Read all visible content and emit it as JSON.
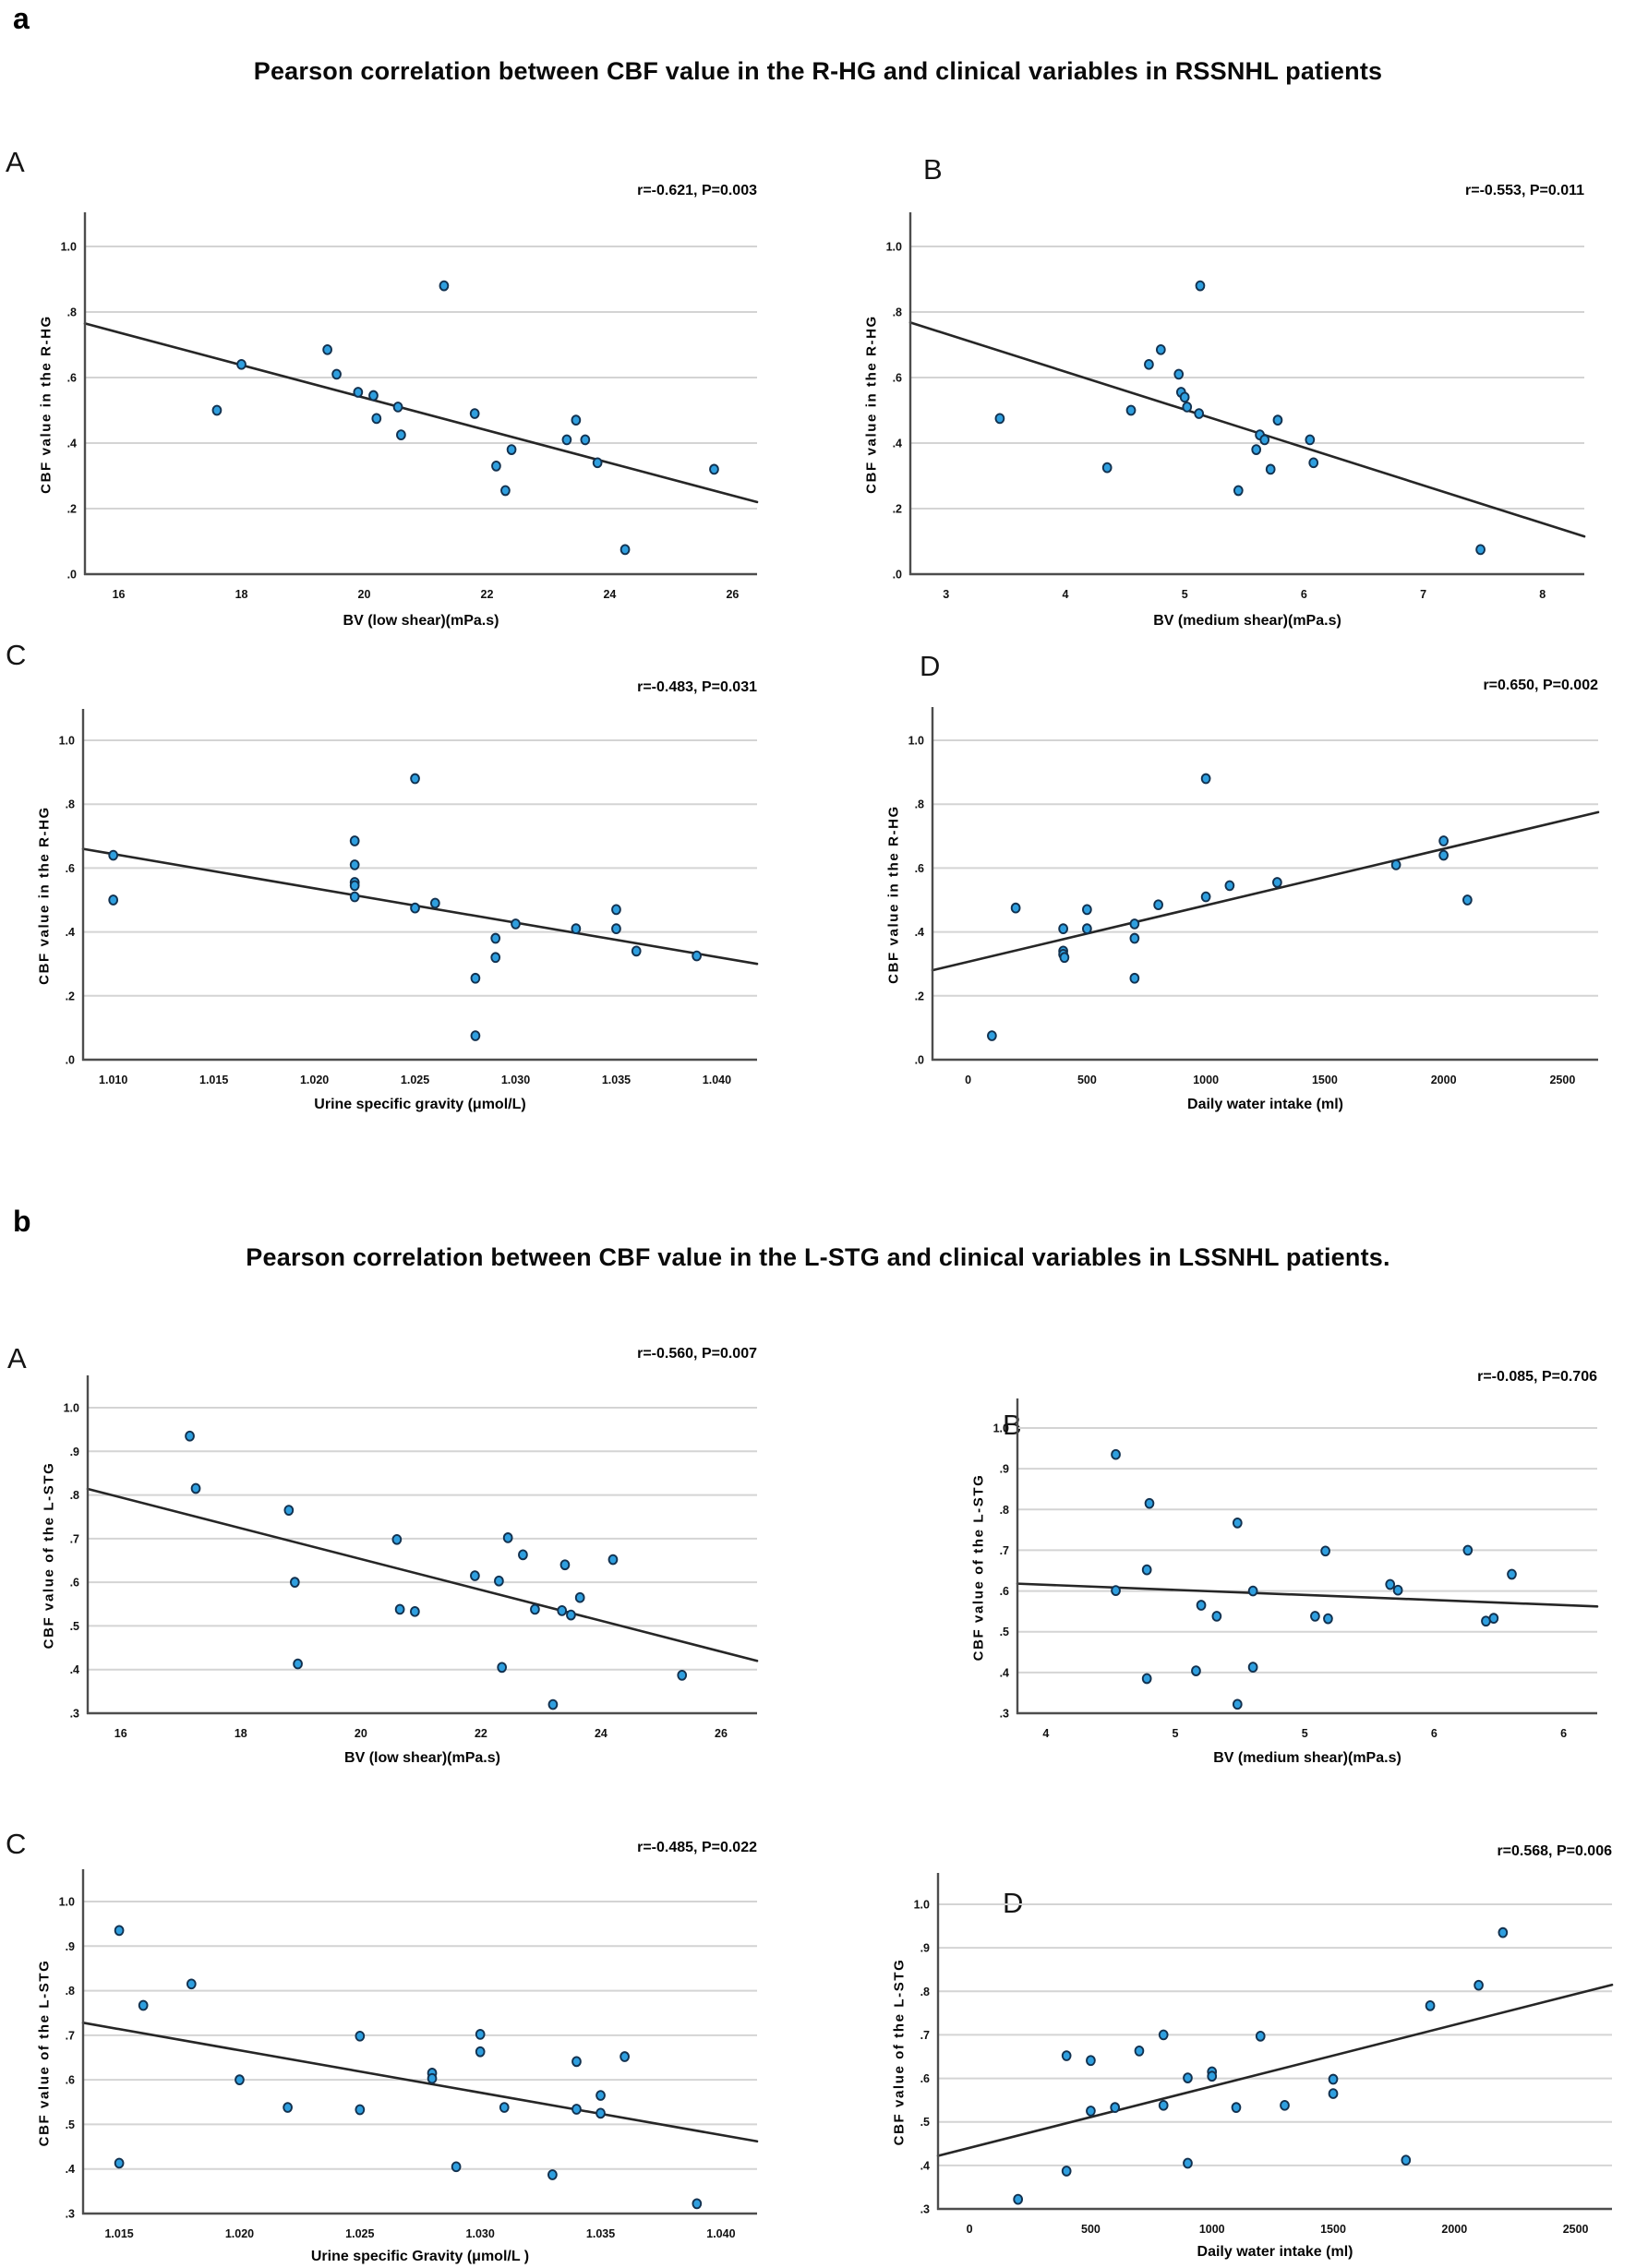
{
  "colors": {
    "background": "#ffffff",
    "point_fill": "#2f9fdf",
    "point_stroke": "#12314f",
    "trend_line": "#262626",
    "gridline": "#d4d4d4",
    "axis": "#4d4d4d",
    "text": "#111111"
  },
  "panels": [
    {
      "label": "a",
      "title": "Pearson correlation between CBF value in the R-HG and clinical variables in RSSNHL patients"
    },
    {
      "label": "b",
      "title": "Pearson correlation between CBF value in the L-STG and clinical variables in LSSNHL patients."
    }
  ],
  "chart_data": [
    {
      "type": "scatter",
      "panel": "a",
      "sub": "A",
      "annotation": "r=-0.621, P=0.003",
      "xlabel": "BV (low shear)(mPa.s)",
      "ylabel": "CBF value in the R-HG",
      "xlim": [
        15.45,
        26.4
      ],
      "ylim": [
        0,
        1.1
      ],
      "xticks": {
        "values": [
          16,
          18,
          20,
          22,
          24,
          26
        ],
        "labels": [
          "16",
          "18",
          "20",
          "22",
          "24",
          "26"
        ]
      },
      "yticks": {
        "values": [
          0,
          0.2,
          0.4,
          0.6,
          0.8,
          1.0
        ],
        "labels": [
          ".0",
          ".2",
          ".4",
          ".6",
          ".8",
          "1.0"
        ]
      },
      "grid_y": [
        0.2,
        0.4,
        0.6,
        0.8,
        1.0
      ],
      "points": [
        [
          17.6,
          0.5
        ],
        [
          18.0,
          0.64
        ],
        [
          19.4,
          0.685
        ],
        [
          19.55,
          0.61
        ],
        [
          19.9,
          0.555
        ],
        [
          20.15,
          0.545
        ],
        [
          20.2,
          0.475
        ],
        [
          20.55,
          0.51
        ],
        [
          20.6,
          0.425
        ],
        [
          21.3,
          0.88
        ],
        [
          21.8,
          0.49
        ],
        [
          22.15,
          0.33
        ],
        [
          22.3,
          0.255
        ],
        [
          22.4,
          0.38
        ],
        [
          23.3,
          0.41
        ],
        [
          23.45,
          0.47
        ],
        [
          23.6,
          0.41
        ],
        [
          23.8,
          0.34
        ],
        [
          24.25,
          0.075
        ],
        [
          25.7,
          0.32
        ]
      ],
      "trend": [
        15.45,
        0.765,
        26.4,
        0.22
      ]
    },
    {
      "type": "scatter",
      "panel": "a",
      "sub": "B",
      "annotation": "r=-0.553, P=0.011",
      "xlabel": "BV (medium shear)(mPa.s)",
      "ylabel": "CBF value in the R-HG",
      "xlim": [
        2.7,
        8.35
      ],
      "ylim": [
        0,
        1.1
      ],
      "xticks": {
        "values": [
          3,
          4,
          5,
          6,
          7,
          8
        ],
        "labels": [
          "3",
          "4",
          "5",
          "6",
          "7",
          "8"
        ]
      },
      "yticks": {
        "values": [
          0,
          0.2,
          0.4,
          0.6,
          0.8,
          1.0
        ],
        "labels": [
          ".0",
          ".2",
          ".4",
          ".6",
          ".8",
          "1.0"
        ]
      },
      "grid_y": [
        0.2,
        0.4,
        0.6,
        0.8,
        1.0
      ],
      "points": [
        [
          3.45,
          0.475
        ],
        [
          4.35,
          0.325
        ],
        [
          4.55,
          0.5
        ],
        [
          4.7,
          0.64
        ],
        [
          4.8,
          0.685
        ],
        [
          4.95,
          0.61
        ],
        [
          4.97,
          0.555
        ],
        [
          5.0,
          0.54
        ],
        [
          5.02,
          0.51
        ],
        [
          5.12,
          0.49
        ],
        [
          5.13,
          0.88
        ],
        [
          5.45,
          0.255
        ],
        [
          5.6,
          0.38
        ],
        [
          5.63,
          0.425
        ],
        [
          5.67,
          0.41
        ],
        [
          5.72,
          0.32
        ],
        [
          5.78,
          0.47
        ],
        [
          6.05,
          0.41
        ],
        [
          6.08,
          0.34
        ],
        [
          7.48,
          0.075
        ]
      ],
      "trend": [
        2.7,
        0.768,
        8.35,
        0.115
      ]
    },
    {
      "type": "scatter",
      "panel": "a",
      "sub": "C",
      "annotation": "r=-0.483, P=0.031",
      "xlabel": "Urine specific gravity (μmol/L)",
      "ylabel": "CBF value in the R-HG",
      "xlim": [
        1.0085,
        1.042
      ],
      "ylim": [
        0,
        1.1
      ],
      "xticks": {
        "values": [
          1.01,
          1.015,
          1.02,
          1.025,
          1.03,
          1.035,
          1.04
        ],
        "labels": [
          "1.010",
          "1.015",
          "1.020",
          "1.025",
          "1.030",
          "1.035",
          "1.040"
        ]
      },
      "yticks": {
        "values": [
          0,
          0.2,
          0.4,
          0.6,
          0.8,
          1.0
        ],
        "labels": [
          ".0",
          ".2",
          ".4",
          ".6",
          ".8",
          "1.0"
        ]
      },
      "grid_y": [
        0.2,
        0.4,
        0.6,
        0.8,
        1.0
      ],
      "points": [
        [
          1.01,
          0.64
        ],
        [
          1.01,
          0.5
        ],
        [
          1.022,
          0.685
        ],
        [
          1.022,
          0.61
        ],
        [
          1.022,
          0.555
        ],
        [
          1.022,
          0.545
        ],
        [
          1.022,
          0.51
        ],
        [
          1.025,
          0.88
        ],
        [
          1.025,
          0.475
        ],
        [
          1.026,
          0.49
        ],
        [
          1.028,
          0.255
        ],
        [
          1.028,
          0.075
        ],
        [
          1.029,
          0.38
        ],
        [
          1.029,
          0.32
        ],
        [
          1.03,
          0.425
        ],
        [
          1.033,
          0.41
        ],
        [
          1.035,
          0.47
        ],
        [
          1.035,
          0.41
        ],
        [
          1.036,
          0.34
        ],
        [
          1.039,
          0.325
        ]
      ],
      "trend": [
        1.0085,
        0.66,
        1.042,
        0.3
      ]
    },
    {
      "type": "scatter",
      "panel": "a",
      "sub": "D",
      "annotation": "r=0.650, P=0.002",
      "xlabel": "Daily water intake (ml)",
      "ylabel": "CBF value in the R-HG",
      "xlim": [
        -150,
        2650
      ],
      "ylim": [
        0,
        1.1
      ],
      "xticks": {
        "values": [
          0,
          500,
          1000,
          1500,
          2000,
          2500
        ],
        "labels": [
          "0",
          "500",
          "1000",
          "1500",
          "2000",
          "2500"
        ]
      },
      "yticks": {
        "values": [
          0,
          0.2,
          0.4,
          0.6,
          0.8,
          1.0
        ],
        "labels": [
          ".0",
          ".2",
          ".4",
          ".6",
          ".8",
          "1.0"
        ]
      },
      "grid_y": [
        0.2,
        0.4,
        0.6,
        0.8,
        1.0
      ],
      "points": [
        [
          100,
          0.075
        ],
        [
          200,
          0.475
        ],
        [
          400,
          0.41
        ],
        [
          400,
          0.34
        ],
        [
          400,
          0.33
        ],
        [
          405,
          0.32
        ],
        [
          500,
          0.47
        ],
        [
          500,
          0.41
        ],
        [
          700,
          0.425
        ],
        [
          700,
          0.38
        ],
        [
          700,
          0.255
        ],
        [
          800,
          0.485
        ],
        [
          1000,
          0.51
        ],
        [
          1000,
          0.88
        ],
        [
          1100,
          0.545
        ],
        [
          1300,
          0.555
        ],
        [
          1800,
          0.61
        ],
        [
          2000,
          0.685
        ],
        [
          2000,
          0.64
        ],
        [
          2100,
          0.5
        ]
      ],
      "trend": [
        -150,
        0.28,
        2650,
        0.775
      ]
    },
    {
      "type": "scatter",
      "panel": "b",
      "sub": "A",
      "annotation": "r=-0.560, P=0.007",
      "xlabel": "BV (low shear)(mPa.s)",
      "ylabel": "CBF value of the L-STG",
      "xlim": [
        15.45,
        26.6
      ],
      "ylim": [
        0.3,
        1.075
      ],
      "xticks": {
        "values": [
          16,
          18,
          20,
          22,
          24,
          26
        ],
        "labels": [
          "16",
          "18",
          "20",
          "22",
          "24",
          "26"
        ]
      },
      "yticks": {
        "values": [
          0.3,
          0.4,
          0.5,
          0.6,
          0.7,
          0.8,
          0.9,
          1.0
        ],
        "labels": [
          ".3",
          ".4",
          ".5",
          ".6",
          ".7",
          ".8",
          ".9",
          "1.0"
        ]
      },
      "grid_y": [
        0.4,
        0.5,
        0.6,
        0.7,
        0.8,
        0.9,
        1.0
      ],
      "points": [
        [
          17.15,
          0.935
        ],
        [
          17.25,
          0.815
        ],
        [
          18.8,
          0.765
        ],
        [
          18.9,
          0.6
        ],
        [
          18.95,
          0.413
        ],
        [
          20.6,
          0.698
        ],
        [
          20.65,
          0.538
        ],
        [
          20.9,
          0.533
        ],
        [
          21.9,
          0.615
        ],
        [
          22.3,
          0.603
        ],
        [
          22.35,
          0.405
        ],
        [
          22.45,
          0.702
        ],
        [
          22.7,
          0.663
        ],
        [
          22.9,
          0.538
        ],
        [
          23.2,
          0.32
        ],
        [
          23.35,
          0.535
        ],
        [
          23.4,
          0.64
        ],
        [
          23.5,
          0.525
        ],
        [
          23.65,
          0.565
        ],
        [
          24.2,
          0.652
        ],
        [
          25.35,
          0.387
        ]
      ],
      "trend": [
        15.45,
        0.814,
        26.6,
        0.42
      ]
    },
    {
      "type": "scatter",
      "panel": "b",
      "sub": "B",
      "annotation": "r=-0.085, P=0.706",
      "xlabel": "BV (medium shear)(mPa.s)",
      "ylabel": "CBF value of the L-STG",
      "xlim": [
        3.89,
        6.13
      ],
      "ylim": [
        0.3,
        1.075
      ],
      "xticks": {
        "values": [
          4,
          4.5,
          5,
          5.5,
          6
        ],
        "labels": [
          "4",
          "5",
          "5",
          "6",
          "6"
        ]
      },
      "yticks": {
        "values": [
          0.3,
          0.4,
          0.5,
          0.6,
          0.7,
          0.8,
          0.9,
          1.0
        ],
        "labels": [
          ".3",
          ".4",
          ".5",
          ".6",
          ".7",
          ".8",
          ".9",
          "1.0"
        ]
      },
      "grid_y": [
        0.4,
        0.5,
        0.6,
        0.7,
        0.8,
        0.9,
        1.0
      ],
      "points": [
        [
          4.27,
          0.935
        ],
        [
          4.4,
          0.815
        ],
        [
          4.39,
          0.652
        ],
        [
          4.27,
          0.601
        ],
        [
          4.6,
          0.565
        ],
        [
          4.58,
          0.404
        ],
        [
          4.39,
          0.385
        ],
        [
          4.66,
          0.538
        ],
        [
          4.74,
          0.767
        ],
        [
          4.8,
          0.6
        ],
        [
          4.8,
          0.413
        ],
        [
          4.74,
          0.322
        ],
        [
          5.04,
          0.538
        ],
        [
          5.09,
          0.532
        ],
        [
          5.08,
          0.698
        ],
        [
          5.33,
          0.616
        ],
        [
          5.36,
          0.602
        ],
        [
          5.63,
          0.7
        ],
        [
          5.7,
          0.526
        ],
        [
          5.73,
          0.533
        ],
        [
          5.8,
          0.641
        ]
      ],
      "trend": [
        3.89,
        0.618,
        6.13,
        0.562
      ]
    },
    {
      "type": "scatter",
      "panel": "b",
      "sub": "C",
      "annotation": "r=-0.485, P=0.022",
      "xlabel": "Urine specific Gravity (μmol/L )",
      "ylabel": "CBF value of the L-STG",
      "xlim": [
        1.0135,
        1.0415
      ],
      "ylim": [
        0.3,
        1.075
      ],
      "xticks": {
        "values": [
          1.015,
          1.02,
          1.025,
          1.03,
          1.035,
          1.04
        ],
        "labels": [
          "1.015",
          "1.020",
          "1.025",
          "1.030",
          "1.035",
          "1.040"
        ]
      },
      "yticks": {
        "values": [
          0.3,
          0.4,
          0.5,
          0.6,
          0.7,
          0.8,
          0.9,
          1.0
        ],
        "labels": [
          ".3",
          ".4",
          ".5",
          ".6",
          ".7",
          ".8",
          ".9",
          "1.0"
        ]
      },
      "grid_y": [
        0.4,
        0.5,
        0.6,
        0.7,
        0.8,
        0.9,
        1.0
      ],
      "points": [
        [
          1.015,
          0.935
        ],
        [
          1.015,
          0.413
        ],
        [
          1.016,
          0.767
        ],
        [
          1.018,
          0.815
        ],
        [
          1.02,
          0.6
        ],
        [
          1.022,
          0.538
        ],
        [
          1.025,
          0.698
        ],
        [
          1.025,
          0.533
        ],
        [
          1.028,
          0.615
        ],
        [
          1.028,
          0.603
        ],
        [
          1.029,
          0.405
        ],
        [
          1.03,
          0.702
        ],
        [
          1.03,
          0.663
        ],
        [
          1.031,
          0.538
        ],
        [
          1.033,
          0.387
        ],
        [
          1.034,
          0.641
        ],
        [
          1.034,
          0.534
        ],
        [
          1.035,
          0.565
        ],
        [
          1.035,
          0.525
        ],
        [
          1.036,
          0.652
        ],
        [
          1.039,
          0.322
        ]
      ],
      "trend": [
        1.0135,
        0.728,
        1.0415,
        0.462
      ]
    },
    {
      "type": "scatter",
      "panel": "b",
      "sub": "D",
      "annotation": "r=0.568, P=0.006",
      "xlabel": "Daily water intake (ml)",
      "ylabel": "CBF value of the L-STG",
      "xlim": [
        -130,
        2650
      ],
      "ylim": [
        0.3,
        1.075
      ],
      "xticks": {
        "values": [
          0,
          500,
          1000,
          1500,
          2000,
          2500
        ],
        "labels": [
          "0",
          "500",
          "1000",
          "1500",
          "2000",
          "2500"
        ]
      },
      "yticks": {
        "values": [
          0.3,
          0.4,
          0.5,
          0.6,
          0.7,
          0.8,
          0.9,
          1.0
        ],
        "labels": [
          ".3",
          ".4",
          ".5",
          ".6",
          ".7",
          ".8",
          ".9",
          "1.0"
        ]
      },
      "grid_y": [
        0.4,
        0.5,
        0.6,
        0.7,
        0.8,
        0.9,
        1.0
      ],
      "points": [
        [
          200,
          0.322
        ],
        [
          400,
          0.387
        ],
        [
          400,
          0.652
        ],
        [
          500,
          0.641
        ],
        [
          500,
          0.525
        ],
        [
          600,
          0.533
        ],
        [
          700,
          0.663
        ],
        [
          800,
          0.7
        ],
        [
          800,
          0.538
        ],
        [
          900,
          0.405
        ],
        [
          900,
          0.601
        ],
        [
          1000,
          0.615
        ],
        [
          1000,
          0.605
        ],
        [
          1100,
          0.533
        ],
        [
          1200,
          0.697
        ],
        [
          1300,
          0.538
        ],
        [
          1500,
          0.598
        ],
        [
          1500,
          0.565
        ],
        [
          1800,
          0.412
        ],
        [
          1900,
          0.767
        ],
        [
          2100,
          0.814
        ],
        [
          2200,
          0.935
        ]
      ],
      "trend": [
        -130,
        0.422,
        2650,
        0.815
      ]
    }
  ]
}
